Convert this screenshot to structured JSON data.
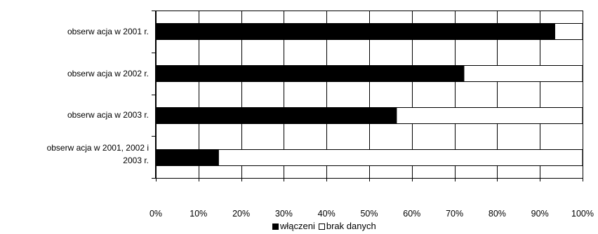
{
  "chart_data": {
    "type": "bar",
    "orientation": "horizontal",
    "stacked": true,
    "title": "",
    "xlabel": "",
    "ylabel": "",
    "categories": [
      "obserw acja w  2001 r.",
      "obserw acja w  2002 r.",
      "obserw acja w  2003 r.",
      "obserw acja w  2001, 2002 i 2003 r."
    ],
    "category_lines": [
      [
        "obserw acja w  2001 r."
      ],
      [
        "obserw acja w  2002 r."
      ],
      [
        "obserw acja w  2003 r."
      ],
      [
        "obserw acja w  2001, 2002 i",
        "2003 r."
      ]
    ],
    "series": [
      {
        "name": "włączeni",
        "values": [
          93.5,
          72.2,
          56.4,
          14.7
        ],
        "color": "#000000"
      },
      {
        "name": "brak danych",
        "values": [
          6.5,
          27.8,
          43.6,
          85.3
        ],
        "color": "#ffffff"
      }
    ],
    "xlim": [
      0,
      100
    ],
    "x_ticks": [
      "0%",
      "10%",
      "20%",
      "30%",
      "40%",
      "50%",
      "60%",
      "70%",
      "80%",
      "90%",
      "100%"
    ],
    "grid": true,
    "legend_position": "bottom"
  }
}
